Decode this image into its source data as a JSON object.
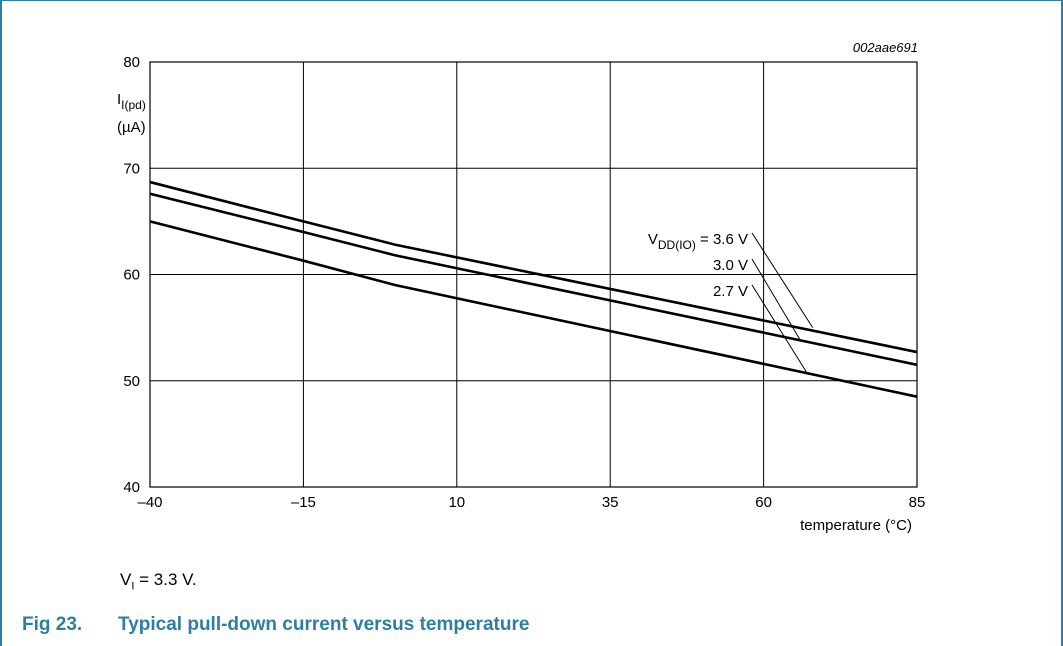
{
  "colors": {
    "caption": "#2c7fa3",
    "frame": "#2c7fa3",
    "lines": "#000000"
  },
  "figure": {
    "code": "002aae691",
    "caption_number": "Fig 23.",
    "caption_title": "Typical pull-down current versus temperature",
    "note_symbol": "V",
    "note_sub": "I",
    "note_value": " = 3.3 V."
  },
  "chart_data": {
    "type": "line",
    "ylabel_symbol": "I",
    "ylabel_sub": "I(pd)",
    "yunit": "(µA)",
    "xlabel": "temperature (°C)",
    "xlim": [
      -40,
      85
    ],
    "ylim": [
      40,
      80
    ],
    "xticks": [
      -40,
      -15,
      10,
      35,
      60,
      85
    ],
    "xtick_labels": [
      "–40",
      "–15",
      "10",
      "35",
      "60",
      "85"
    ],
    "yticks": [
      40,
      50,
      60,
      70,
      80
    ],
    "ytick_labels": [
      "40",
      "50",
      "60",
      "70",
      "80"
    ],
    "grid": true,
    "legend_prefix_symbol": "V",
    "legend_prefix_sub": "DD(IO)",
    "series": [
      {
        "name": "3.6 V",
        "label": "= 3.6 V",
        "x": [
          -40,
          -15,
          0,
          85
        ],
        "y": [
          68.7,
          65.0,
          62.8,
          52.7
        ],
        "leader_to": [
          68,
          55
        ]
      },
      {
        "name": "3.0 V",
        "label": "3.0 V",
        "x": [
          -40,
          -15,
          0,
          85
        ],
        "y": [
          67.6,
          64.0,
          61.8,
          51.5
        ],
        "leader_to": [
          66,
          53.8
        ]
      },
      {
        "name": "2.7 V",
        "label": "2.7 V",
        "x": [
          -40,
          -15,
          0,
          85
        ],
        "y": [
          65.0,
          61.3,
          59.0,
          48.5
        ],
        "leader_to": [
          67,
          50.8
        ]
      }
    ]
  }
}
